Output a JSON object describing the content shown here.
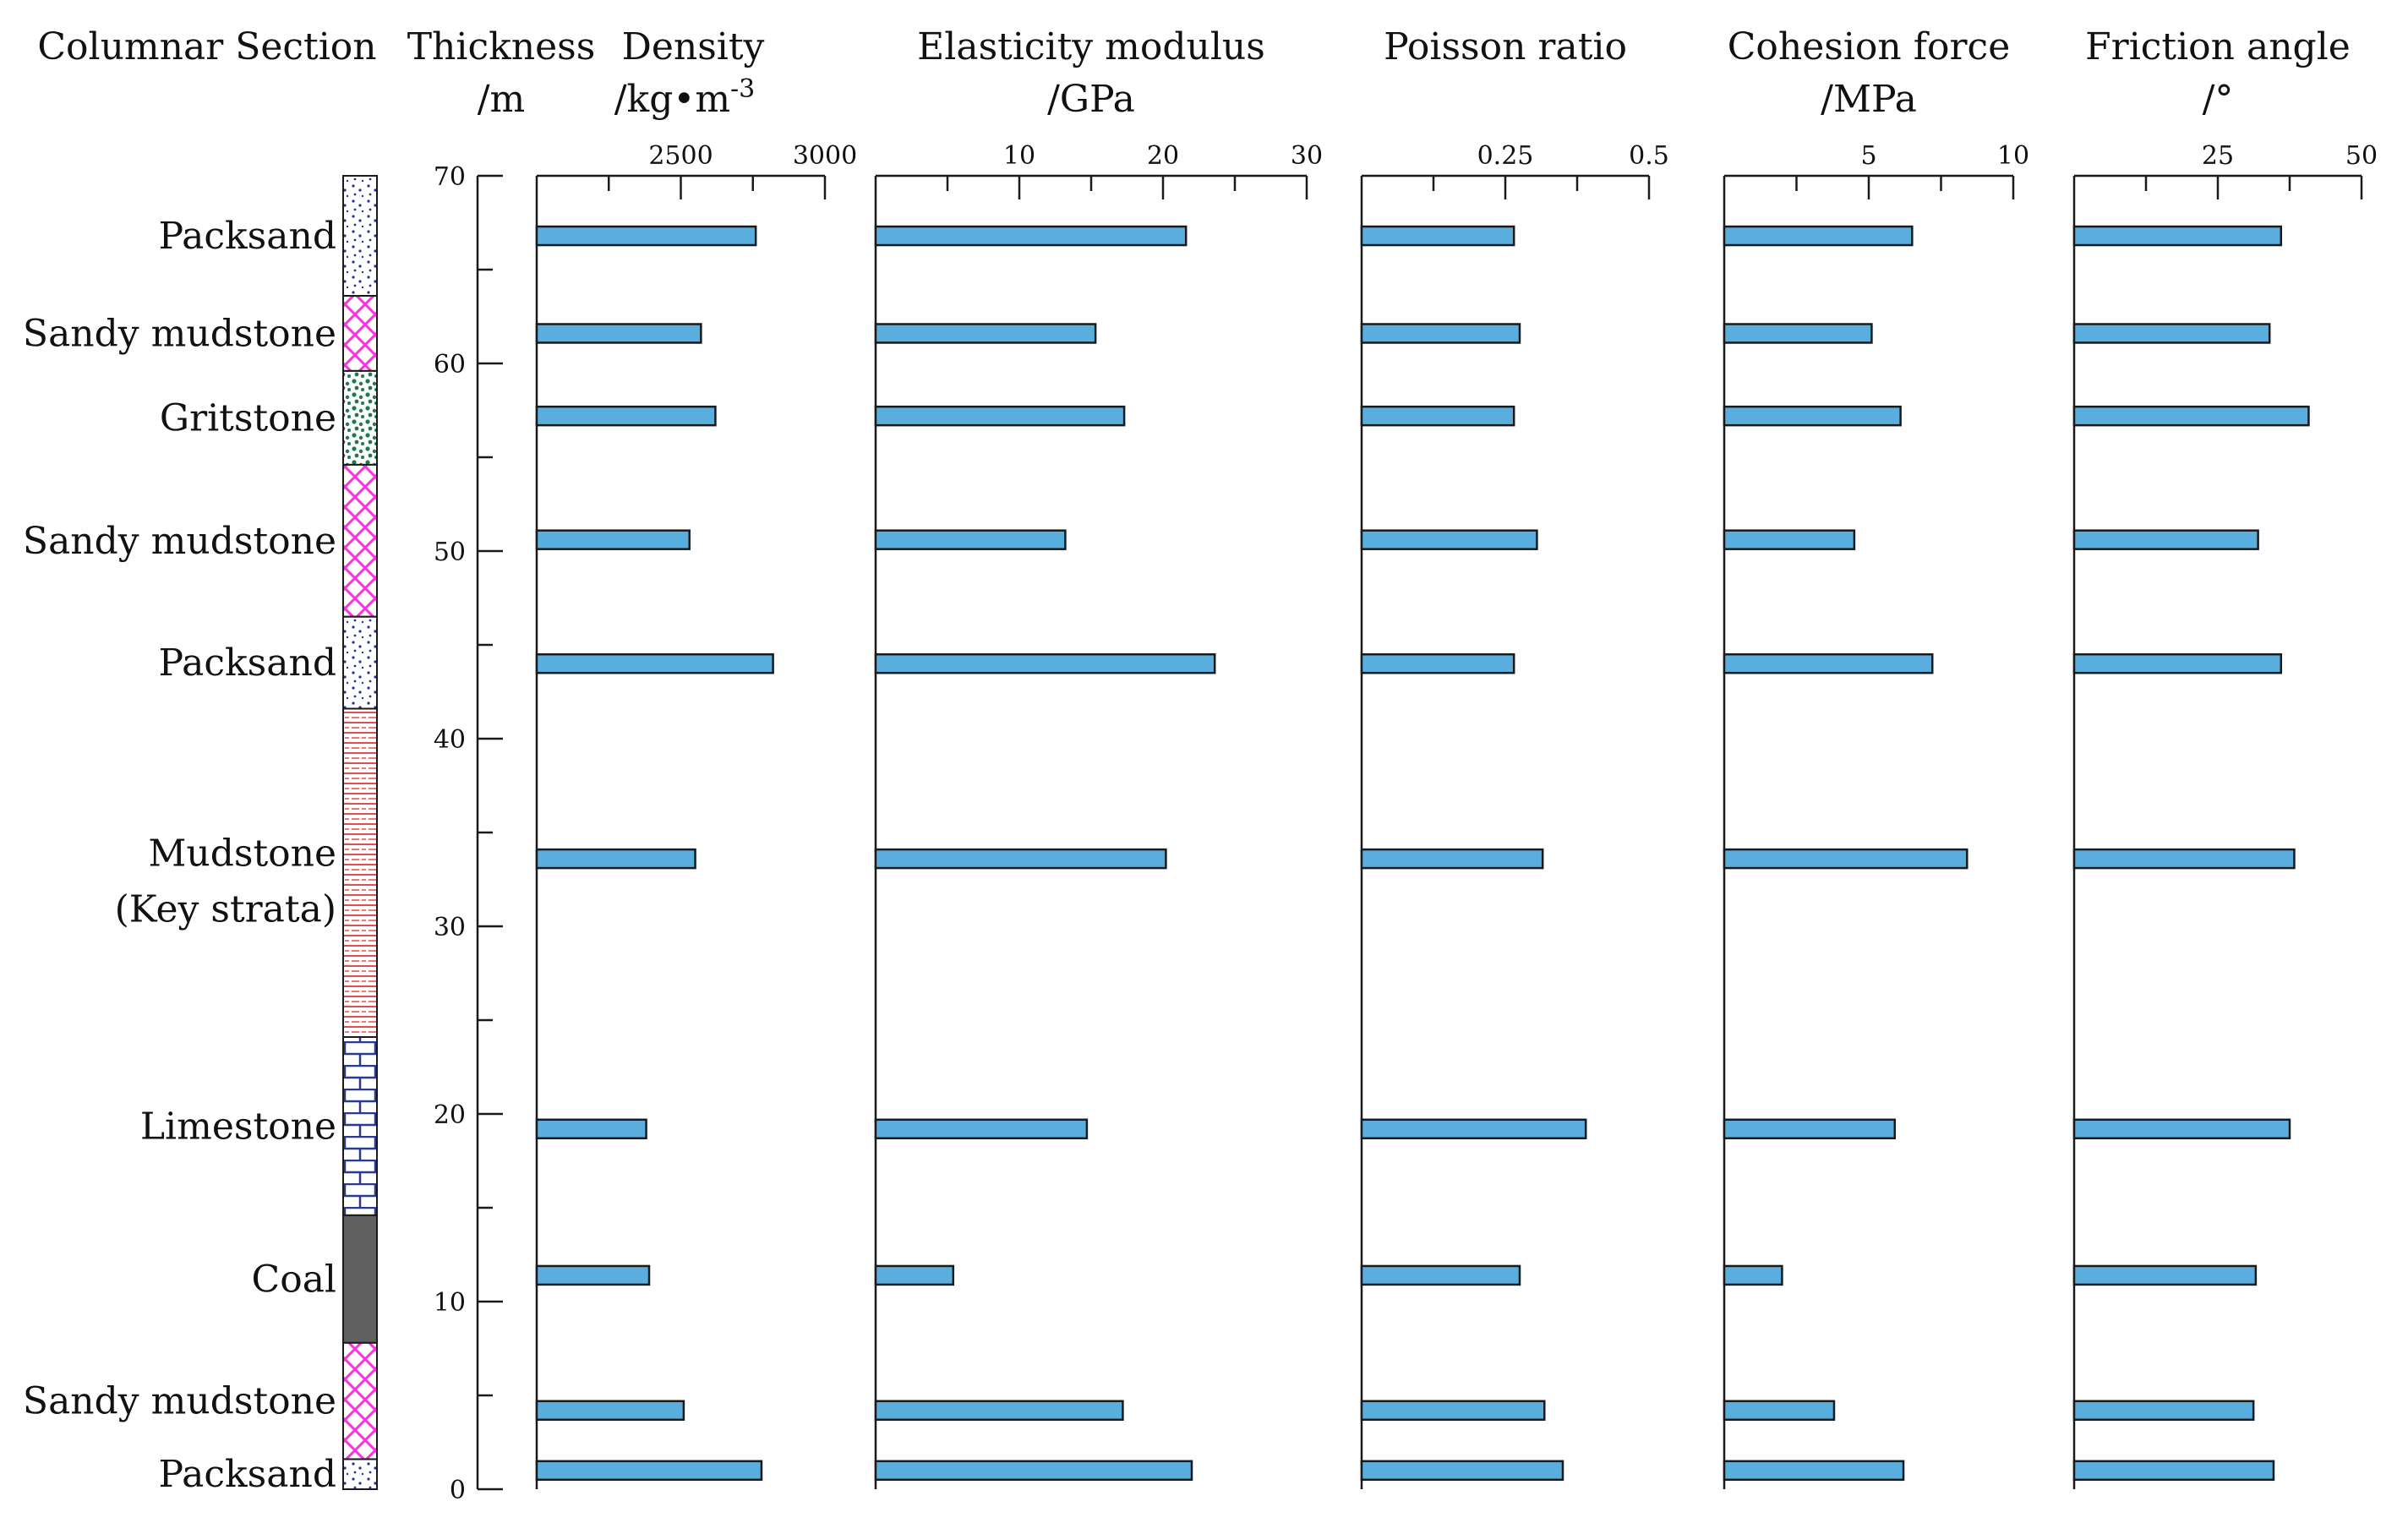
{
  "chart_data": {
    "type": "bar",
    "orientation": "horizontal",
    "title": "",
    "colors": {
      "bar_fill": "#5aaede",
      "bar_stroke": "#1a1a1a",
      "axis": "#1a1a1a",
      "packsand": "#2a2ea0",
      "sandy_mudstone": "#ff33dd",
      "gritstone": "#1d7a4f",
      "mudstone": "#e05050",
      "limestone": "#2a3b8f",
      "coal": "#606060"
    },
    "lithology_header": "Columnar Section",
    "thickness_header": {
      "line1": "Thickness",
      "line2": "/m"
    },
    "thickness_axis": {
      "min": 0,
      "max": 70,
      "ticks": [
        0,
        10,
        20,
        30,
        40,
        50,
        60,
        70
      ]
    },
    "layers": [
      {
        "name": "Packsand",
        "name_line2": "",
        "top": 70.0,
        "bottom": 63.6,
        "pattern": "packsand"
      },
      {
        "name": "Sandy mudstone",
        "name_line2": "",
        "top": 63.6,
        "bottom": 59.6,
        "pattern": "sandy_mudstone"
      },
      {
        "name": "Gritstone",
        "name_line2": "",
        "top": 59.6,
        "bottom": 54.6,
        "pattern": "gritstone"
      },
      {
        "name": "Sandy mudstone",
        "name_line2": "",
        "top": 54.6,
        "bottom": 46.5,
        "pattern": "sandy_mudstone"
      },
      {
        "name": "Packsand",
        "name_line2": "",
        "top": 46.5,
        "bottom": 41.6,
        "pattern": "packsand"
      },
      {
        "name": "Mudstone",
        "name_line2": "(Key strata)",
        "top": 41.6,
        "bottom": 24.1,
        "pattern": "mudstone"
      },
      {
        "name": "Limestone",
        "name_line2": "",
        "top": 24.1,
        "bottom": 14.6,
        "pattern": "limestone"
      },
      {
        "name": "Coal",
        "name_line2": "",
        "top": 14.6,
        "bottom": 7.8,
        "pattern": "coal"
      },
      {
        "name": "Sandy mudstone",
        "name_line2": "",
        "top": 7.8,
        "bottom": 1.6,
        "pattern": "sandy_mudstone"
      },
      {
        "name": "Packsand",
        "name_line2": "",
        "top": 1.6,
        "bottom": 0.0,
        "pattern": "packsand"
      }
    ],
    "bar_depths": [
      66.8,
      61.6,
      57.2,
      50.6,
      44.0,
      33.6,
      19.2,
      11.4,
      4.2,
      1.0
    ],
    "series": [
      {
        "name": "Density",
        "unit_line1": "Density",
        "unit_line2": "/kg•m",
        "unit_sup": "-3",
        "xlim": [
          2000,
          3000
        ],
        "tick_labels": [
          "2500",
          "3000"
        ],
        "tick_values": [
          2500,
          3000
        ],
        "minor_ticks": [
          2250,
          2750
        ],
        "values": [
          2760,
          2570,
          2620,
          2530,
          2820,
          2550,
          2380,
          2390,
          2510,
          2780
        ]
      },
      {
        "name": "Elasticity modulus",
        "unit_line1": "Elasticity modulus",
        "unit_line2": "/GPa",
        "unit_sup": "",
        "xlim": [
          0,
          30
        ],
        "tick_labels": [
          "10",
          "20",
          "30"
        ],
        "tick_values": [
          10,
          20,
          30
        ],
        "minor_ticks": [
          5,
          15,
          25
        ],
        "values": [
          21.6,
          15.3,
          17.3,
          13.2,
          23.6,
          20.2,
          14.7,
          5.4,
          17.2,
          22.0
        ]
      },
      {
        "name": "Poisson ratio",
        "unit_line1": "Poisson ratio",
        "unit_line2": "",
        "unit_sup": "",
        "xlim": [
          0,
          0.5
        ],
        "tick_labels": [
          "0.25",
          "0.5"
        ],
        "tick_values": [
          0.25,
          0.5
        ],
        "minor_ticks": [
          0.125,
          0.375
        ],
        "values": [
          0.265,
          0.275,
          0.265,
          0.305,
          0.265,
          0.315,
          0.39,
          0.275,
          0.318,
          0.35
        ]
      },
      {
        "name": "Cohesion force",
        "unit_line1": "Cohesion force",
        "unit_line2": "/MPa",
        "unit_sup": "",
        "xlim": [
          0,
          10
        ],
        "tick_labels": [
          "5",
          "10"
        ],
        "tick_values": [
          5,
          10
        ],
        "minor_ticks": [
          2.5,
          7.5
        ],
        "values": [
          6.5,
          5.1,
          6.1,
          4.5,
          7.2,
          8.4,
          5.9,
          2.0,
          3.8,
          6.2
        ]
      },
      {
        "name": "Friction angle",
        "unit_line1": "Friction angle",
        "unit_line2": "/°",
        "unit_sup": "",
        "xlim": [
          0,
          50
        ],
        "tick_labels": [
          "25",
          "50"
        ],
        "tick_values": [
          25,
          50
        ],
        "minor_ticks": [
          12.5,
          37.5
        ],
        "values": [
          36.0,
          34.0,
          40.8,
          32.0,
          36.0,
          38.3,
          37.5,
          31.6,
          31.2,
          34.7
        ]
      }
    ]
  }
}
